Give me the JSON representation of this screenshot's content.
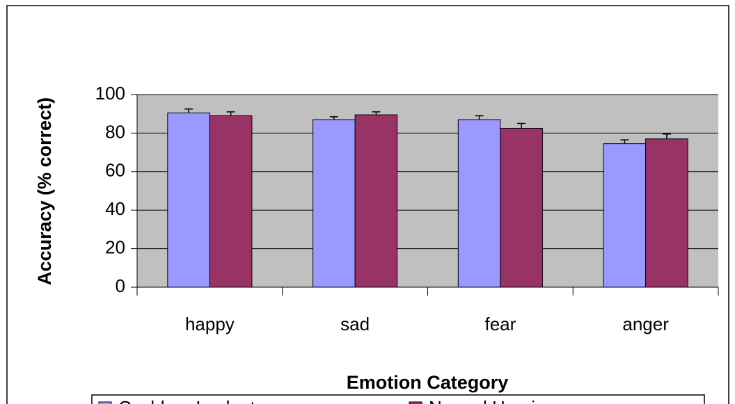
{
  "chart_data": {
    "type": "bar",
    "x_label": "Emotion Category",
    "y_label": "Accuracy (% correct)",
    "categories": [
      "happy",
      "sad",
      "fear",
      "anger"
    ],
    "series": [
      {
        "name": "Cochlear Implant group",
        "color": "#9999ff",
        "values": [
          90.5,
          87,
          87,
          74.5
        ],
        "errors": [
          2,
          1.5,
          2,
          2
        ]
      },
      {
        "name": "Normal Hearing group",
        "color": "#993366",
        "values": [
          89,
          89.5,
          82.5,
          77
        ],
        "errors": [
          2,
          1.5,
          2.5,
          2.5
        ]
      }
    ],
    "ylim": [
      0,
      100
    ],
    "yticks": [
      0,
      20,
      40,
      60,
      80,
      100
    ],
    "grid": true,
    "legend": "bottom"
  }
}
